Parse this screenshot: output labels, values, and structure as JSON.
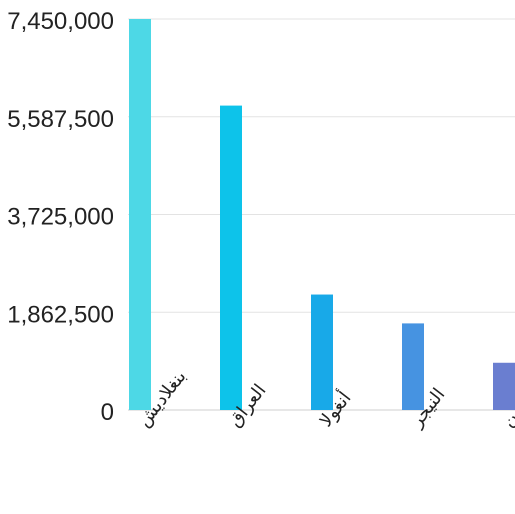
{
  "chart_data": {
    "type": "bar",
    "categories": [
      "بنغلاديش",
      "العراق",
      "أنغولا",
      "النيجر",
      "اليمن"
    ],
    "values": [
      7450000,
      5800000,
      2200000,
      1650000,
      900000
    ],
    "ylim": [
      0,
      7450000
    ],
    "yticks": [
      0,
      1862500,
      3725000,
      5587500,
      7450000
    ],
    "ytick_labels": [
      "0",
      "1,862,500",
      "3,725,000",
      "5,587,500",
      "7,450,000"
    ],
    "colors": [
      "#4dd8e6",
      "#0dc3ea",
      "#18a9e8",
      "#4693e1",
      "#6a7ed0"
    ],
    "grid": true,
    "title": "",
    "xlabel": "",
    "ylabel": ""
  }
}
